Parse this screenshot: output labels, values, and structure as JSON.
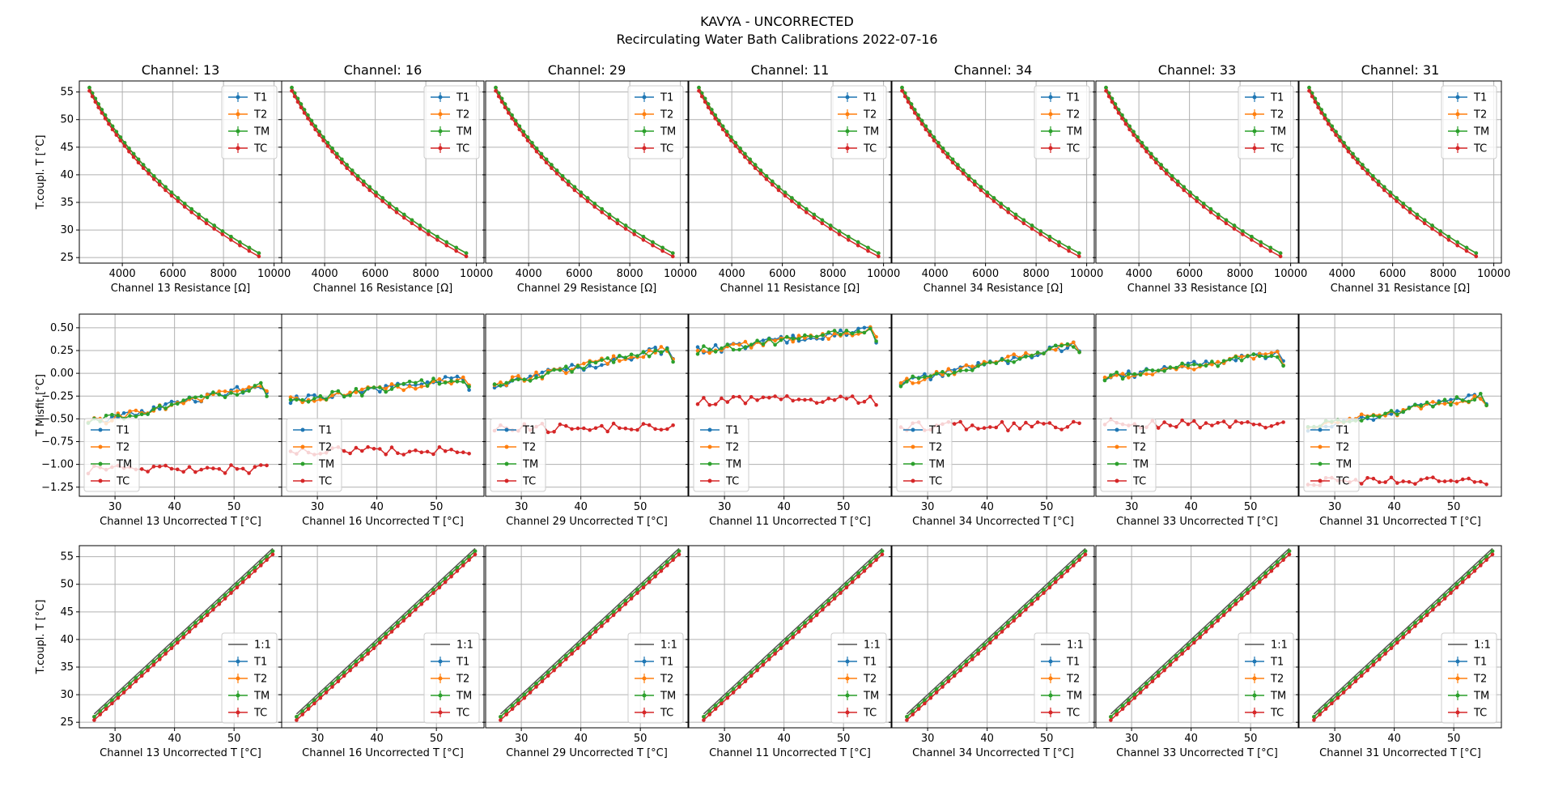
{
  "figure": {
    "title_line1": "KAVYA - UNCORRECTED",
    "title_line2": "Recirculating Water Bath Calibrations 2022-07-16"
  },
  "colors": {
    "T1": "#1f77b4",
    "T2": "#ff7f0e",
    "TM": "#2ca02c",
    "TC": "#d62728",
    "one_to_one": "#555555",
    "grid": "#b0b0b0"
  },
  "chart_data": {
    "type": "line",
    "channels": [
      "13",
      "16",
      "29",
      "11",
      "34",
      "33",
      "31"
    ],
    "channel_titles": [
      "Channel: 13",
      "Channel: 16",
      "Channel: 29",
      "Channel: 11",
      "Channel: 34",
      "Channel: 33",
      "Channel: 31"
    ],
    "legend_labels": [
      "T1",
      "T2",
      "TM",
      "TC"
    ],
    "legend_labels_row3": [
      "1:1",
      "T1",
      "T2",
      "TM",
      "TC"
    ],
    "rows": [
      {
        "ylabel": "T.coupl. T [$^\\circ$C]",
        "xlabels": [
          "Channel 13 Resistance [Ω]",
          "Channel 16 Resistance [Ω]",
          "Channel 29 Resistance [Ω]",
          "Channel 11 Resistance [Ω]",
          "Channel 34 Resistance [Ω]",
          "Channel 33 Resistance [Ω]",
          "Channel 31 Resistance [Ω]"
        ],
        "xticks": [
          "4000",
          "6000",
          "8000",
          "10000"
        ],
        "yticks": [
          "25",
          "30",
          "35",
          "40",
          "45",
          "50",
          "55"
        ],
        "xlim": [
          2300,
          10300
        ],
        "ylim": [
          24,
          57
        ],
        "legend": "upper right",
        "resistance_end": [
          9400,
          9600,
          9700,
          9800,
          9700,
          9600,
          9300
        ]
      },
      {
        "ylabel": "T Misfit [$^\\circ$C]",
        "xlabels": [
          "Channel 13 Uncorrected T [$^\\circ$C]",
          "Channel 16 Uncorrected T [$^\\circ$C]",
          "Channel 29 Uncorrected T [$^\\circ$C]",
          "Channel 11 Uncorrected T [$^\\circ$C]",
          "Channel 34 Uncorrected T [$^\\circ$C]",
          "Channel 33 Uncorrected T [$^\\circ$C]",
          "Channel 31 Uncorrected T [$^\\circ$C]"
        ],
        "xticks": [
          "30",
          "40",
          "50"
        ],
        "yticks": [
          "-1.25",
          "-1.00",
          "-0.75",
          "-0.50",
          "-0.25",
          "0.00",
          "0.25",
          "0.50"
        ],
        "xlim": [
          24,
          58
        ],
        "ylim": [
          -1.35,
          0.65
        ],
        "legend": "lower left",
        "misfit_start": [
          -0.55,
          -0.3,
          -0.12,
          0.25,
          -0.1,
          -0.05,
          -0.6
        ],
        "misfit_end": [
          -0.12,
          -0.05,
          0.28,
          0.48,
          0.32,
          0.22,
          -0.24
        ],
        "tc_level": [
          -1.05,
          -0.85,
          -0.6,
          -0.3,
          -0.58,
          -0.55,
          -1.18
        ]
      },
      {
        "ylabel": "T.coupl. T [$^\\circ$C]",
        "xlabels": [
          "Channel 13 Uncorrected T [$^\\circ$C]",
          "Channel 16 Uncorrected T [$^\\circ$C]",
          "Channel 29 Uncorrected T [$^\\circ$C]",
          "Channel 11 Uncorrected T [$^\\circ$C]",
          "Channel 34 Uncorrected T [$^\\circ$C]",
          "Channel 33 Uncorrected T [$^\\circ$C]",
          "Channel 31 Uncorrected T [$^\\circ$C]"
        ],
        "xticks": [
          "30",
          "40",
          "50"
        ],
        "yticks": [
          "25",
          "30",
          "35",
          "40",
          "45",
          "50",
          "55"
        ],
        "xlim": [
          24,
          58
        ],
        "ylim": [
          24,
          57
        ],
        "legend": "lower right"
      }
    ],
    "series_temperature_range": [
      25.5,
      55.5
    ],
    "num_points": 31
  }
}
